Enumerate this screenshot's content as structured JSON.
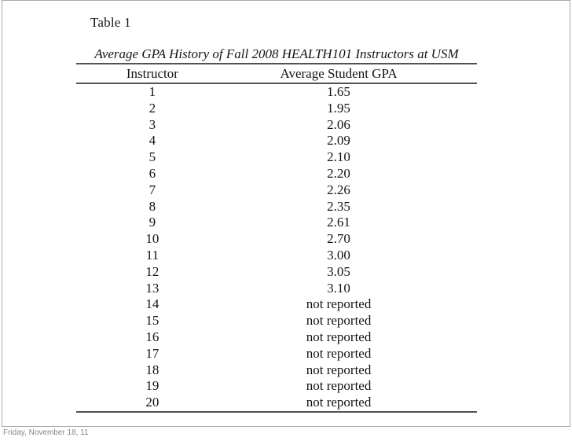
{
  "chart_data": {
    "type": "table",
    "title": "Average GPA History of Fall 2008 HEALTH101 Instructors at USM",
    "columns": [
      "Instructor",
      "Average Student GPA"
    ],
    "rows": [
      [
        "1",
        "1.65"
      ],
      [
        "2",
        "1.95"
      ],
      [
        "3",
        "2.06"
      ],
      [
        "4",
        "2.09"
      ],
      [
        "5",
        "2.10"
      ],
      [
        "6",
        "2.20"
      ],
      [
        "7",
        "2.26"
      ],
      [
        "8",
        "2.35"
      ],
      [
        "9",
        "2.61"
      ],
      [
        "10",
        "2.70"
      ],
      [
        "11",
        "3.00"
      ],
      [
        "12",
        "3.05"
      ],
      [
        "13",
        "3.10"
      ],
      [
        "14",
        "not reported"
      ],
      [
        "15",
        "not reported"
      ],
      [
        "16",
        "not reported"
      ],
      [
        "17",
        "not reported"
      ],
      [
        "18",
        "not reported"
      ],
      [
        "19",
        "not reported"
      ],
      [
        "20",
        "not reported"
      ]
    ]
  },
  "slide": {
    "table_label": "Table 1",
    "table_title": "Average GPA History of Fall 2008 HEALTH101 Instructors at USM",
    "col_instructor": "Instructor",
    "col_gpa": "Average Student GPA"
  },
  "footer": {
    "date_text": "Friday, November 18, 11"
  },
  "colors": {
    "rule": "#525252",
    "text": "#131313",
    "slide_border": "#a8a8a8",
    "footer_text": "#858585"
  }
}
